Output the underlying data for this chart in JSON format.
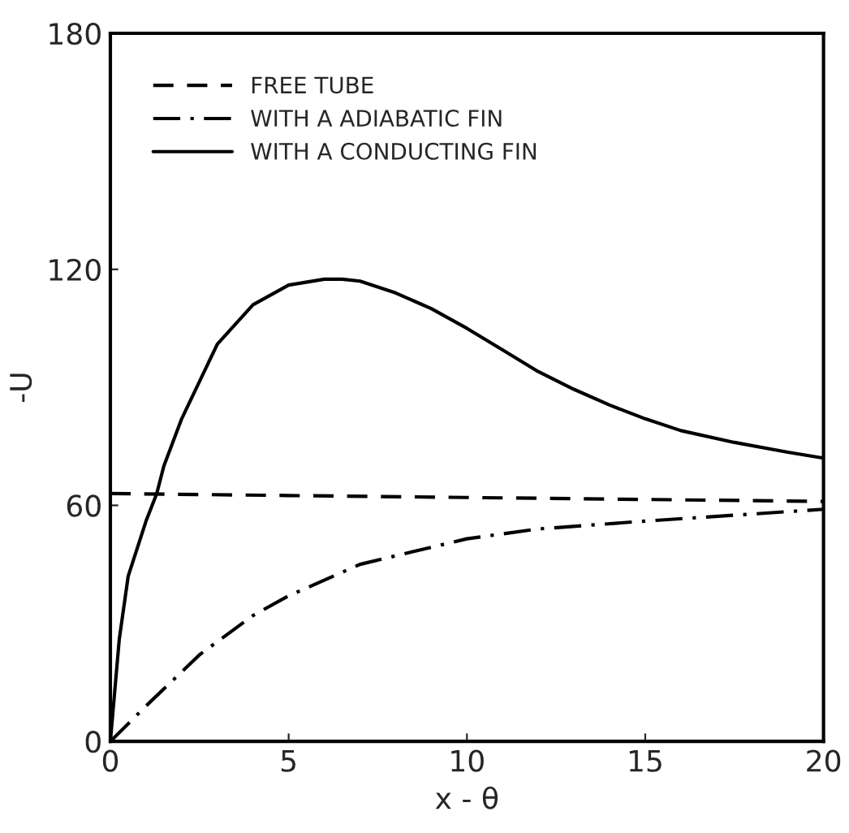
{
  "chart_data": {
    "type": "line",
    "xlabel": "x - θ",
    "ylabel": "-U",
    "xlim": [
      0,
      20
    ],
    "ylim": [
      0,
      180
    ],
    "xticks": [
      0,
      5,
      10,
      15,
      20
    ],
    "yticks": [
      0,
      60,
      120,
      180
    ],
    "grid": false,
    "legend": "top left",
    "marker": "none",
    "series": [
      {
        "name": "FREE TUBE",
        "color": "#000000",
        "line_style": "dashed",
        "x": [
          0,
          5,
          10,
          15,
          20
        ],
        "values": [
          63,
          62.5,
          62,
          61.5,
          61
        ]
      },
      {
        "name": "WITH A ADIABATIC FIN",
        "color": "#000000",
        "line_style": "dashdot",
        "x": [
          0,
          1,
          2.5,
          4,
          5,
          7,
          10,
          12,
          15,
          17.5,
          20
        ],
        "values": [
          0,
          9,
          22,
          32,
          37,
          45,
          51.5,
          54,
          56,
          57.5,
          59
        ]
      },
      {
        "name": "WITH A CONDUCTING FIN",
        "color": "#000000",
        "line_style": "solid",
        "x": [
          0,
          0.25,
          0.5,
          1,
          1.3,
          1.5,
          2,
          3,
          4,
          5,
          6,
          6.5,
          7,
          8,
          9,
          10,
          11,
          12,
          13,
          14,
          15,
          16,
          17.5,
          19,
          20
        ],
        "values": [
          0,
          26,
          42,
          56,
          63,
          70,
          82,
          101,
          111,
          116,
          117.5,
          117.5,
          117,
          114,
          110,
          105,
          99.5,
          94,
          89.5,
          85.5,
          82,
          79,
          76,
          73.5,
          72
        ]
      }
    ]
  }
}
